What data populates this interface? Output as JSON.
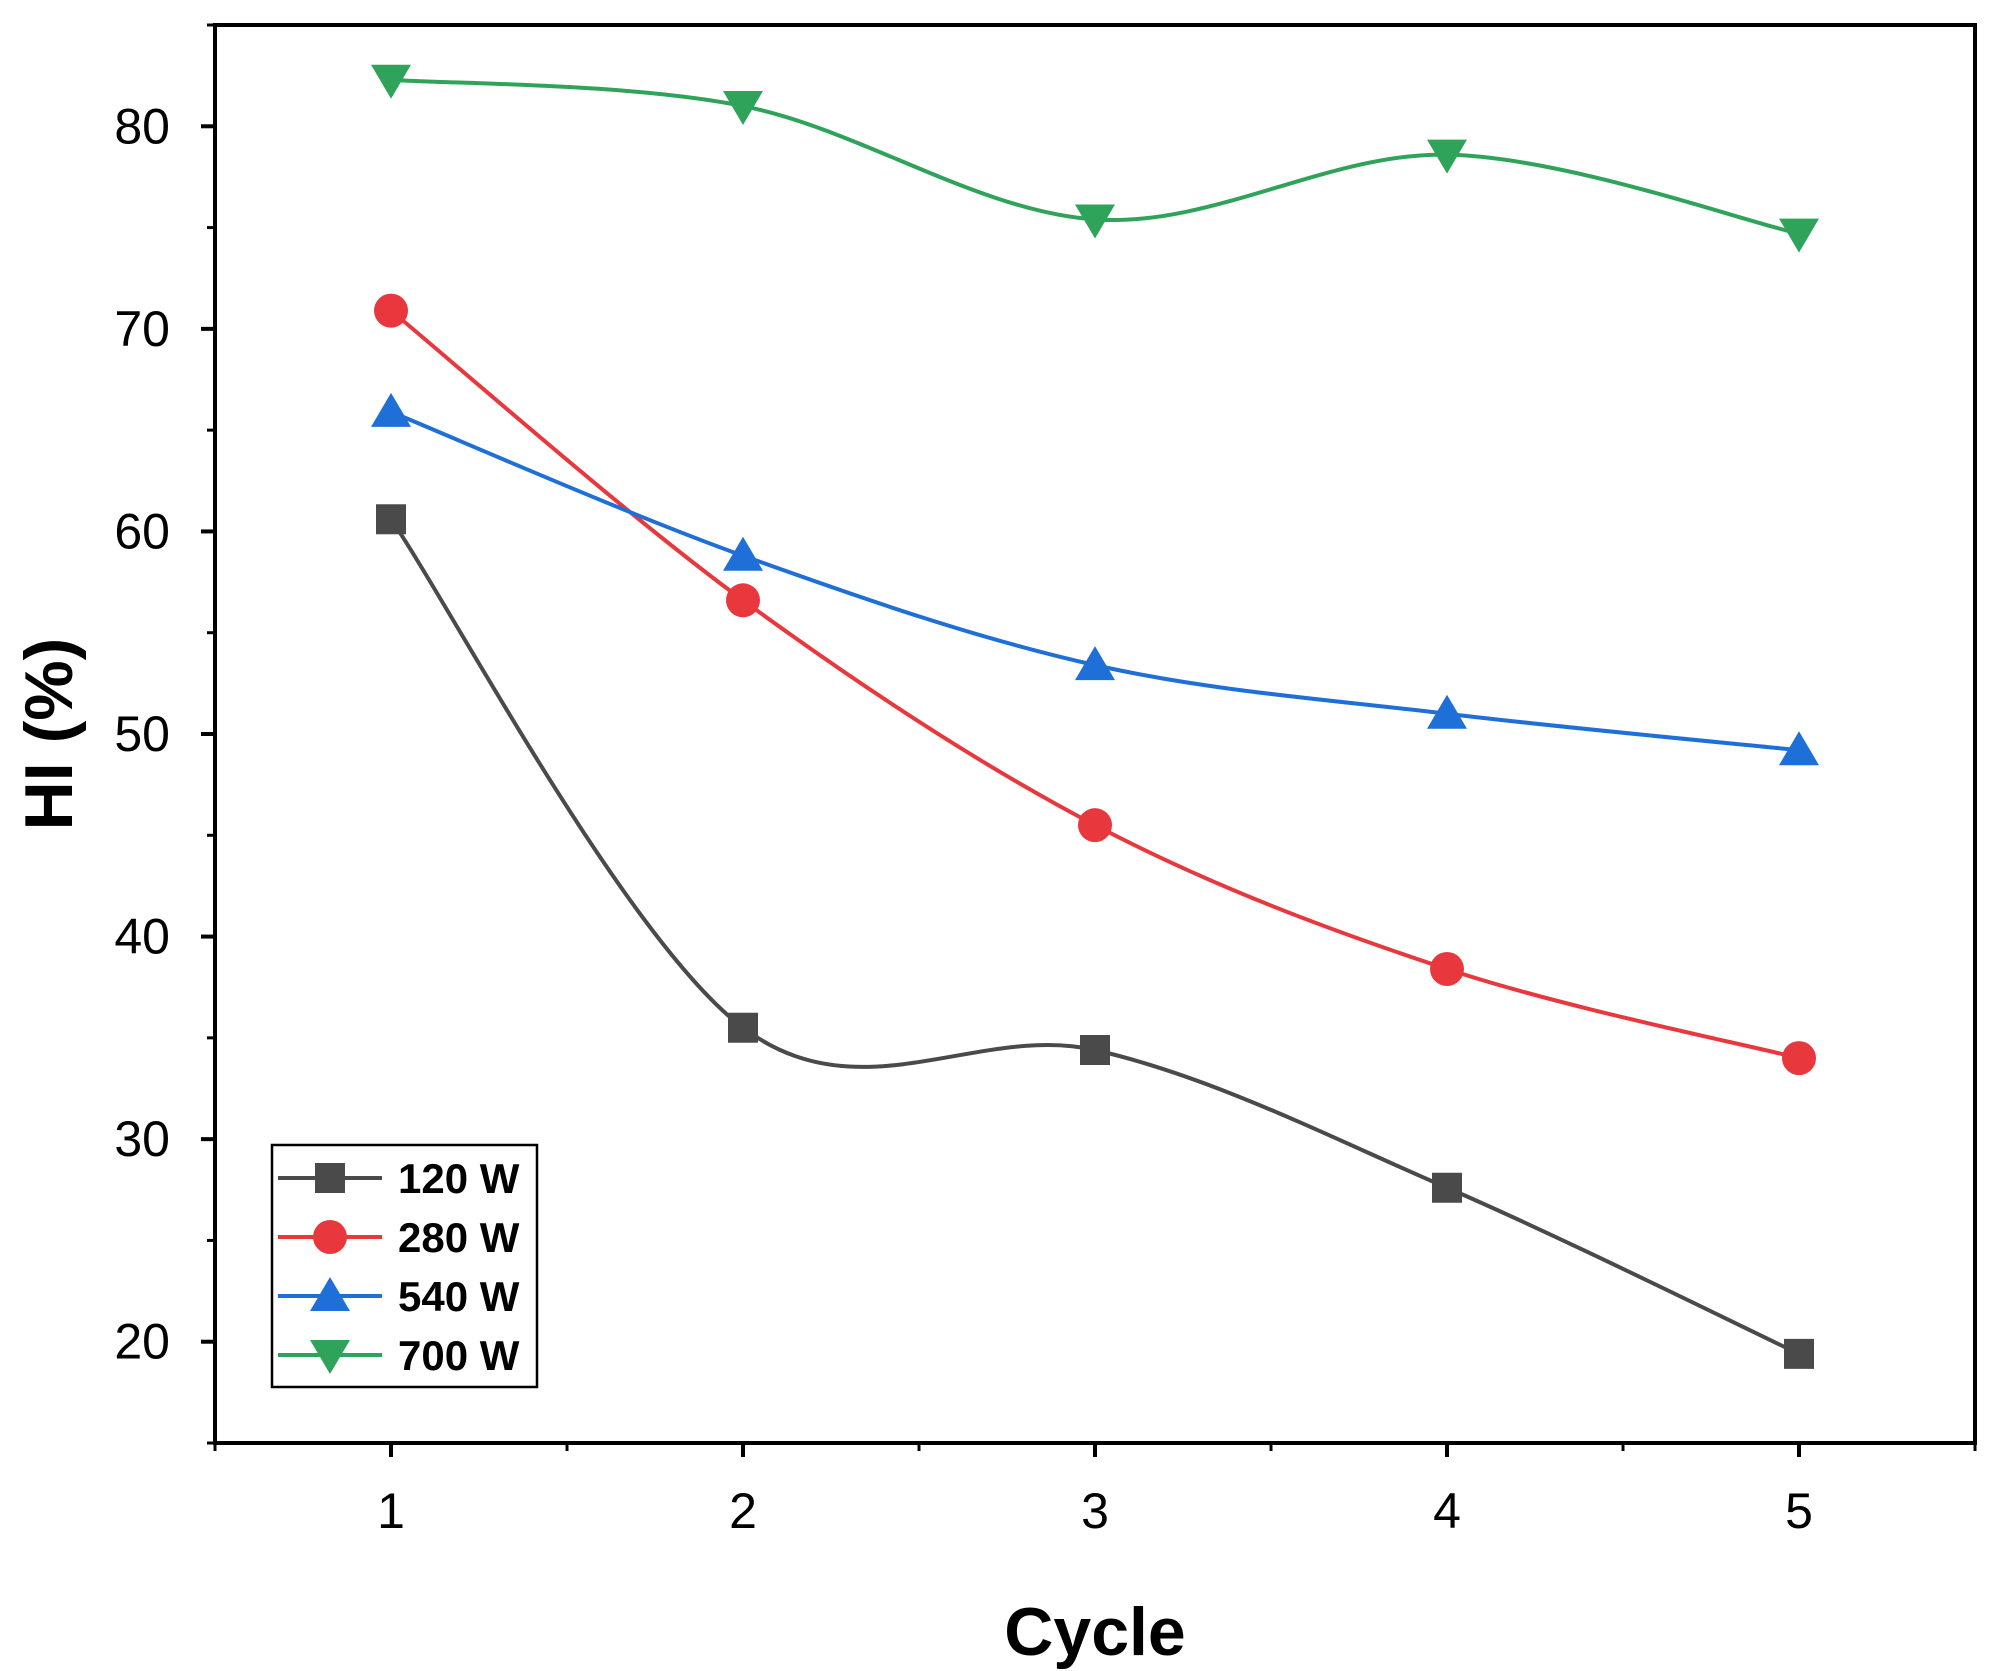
{
  "chart_data": {
    "type": "line",
    "title": "",
    "xlabel": "Cycle",
    "ylabel": "HI (%)",
    "xlim": [
      0.5,
      5.5
    ],
    "ylim": [
      15,
      85
    ],
    "x": [
      1,
      2,
      3,
      4,
      5
    ],
    "x_ticks": [
      "1",
      "2",
      "3",
      "4",
      "5"
    ],
    "y_ticks": [
      "20",
      "30",
      "40",
      "50",
      "60",
      "70",
      "80"
    ],
    "grid": false,
    "legend_position": "bottom-left",
    "series": [
      {
        "name": "120 W",
        "values": [
          60.6,
          35.5,
          34.4,
          27.6,
          19.4
        ],
        "color": "#4a4a4a",
        "marker": "square"
      },
      {
        "name": "280 W",
        "values": [
          70.9,
          56.6,
          45.5,
          38.4,
          34.0
        ],
        "color": "#e8383d",
        "marker": "circle"
      },
      {
        "name": "540 W",
        "values": [
          65.9,
          58.8,
          53.4,
          51.0,
          49.2
        ],
        "color": "#1f6fd8",
        "marker": "triangle-up"
      },
      {
        "name": "700 W",
        "values": [
          82.3,
          81.0,
          75.4,
          78.6,
          74.7
        ],
        "color": "#2fa35a",
        "marker": "triangle-down"
      }
    ]
  }
}
